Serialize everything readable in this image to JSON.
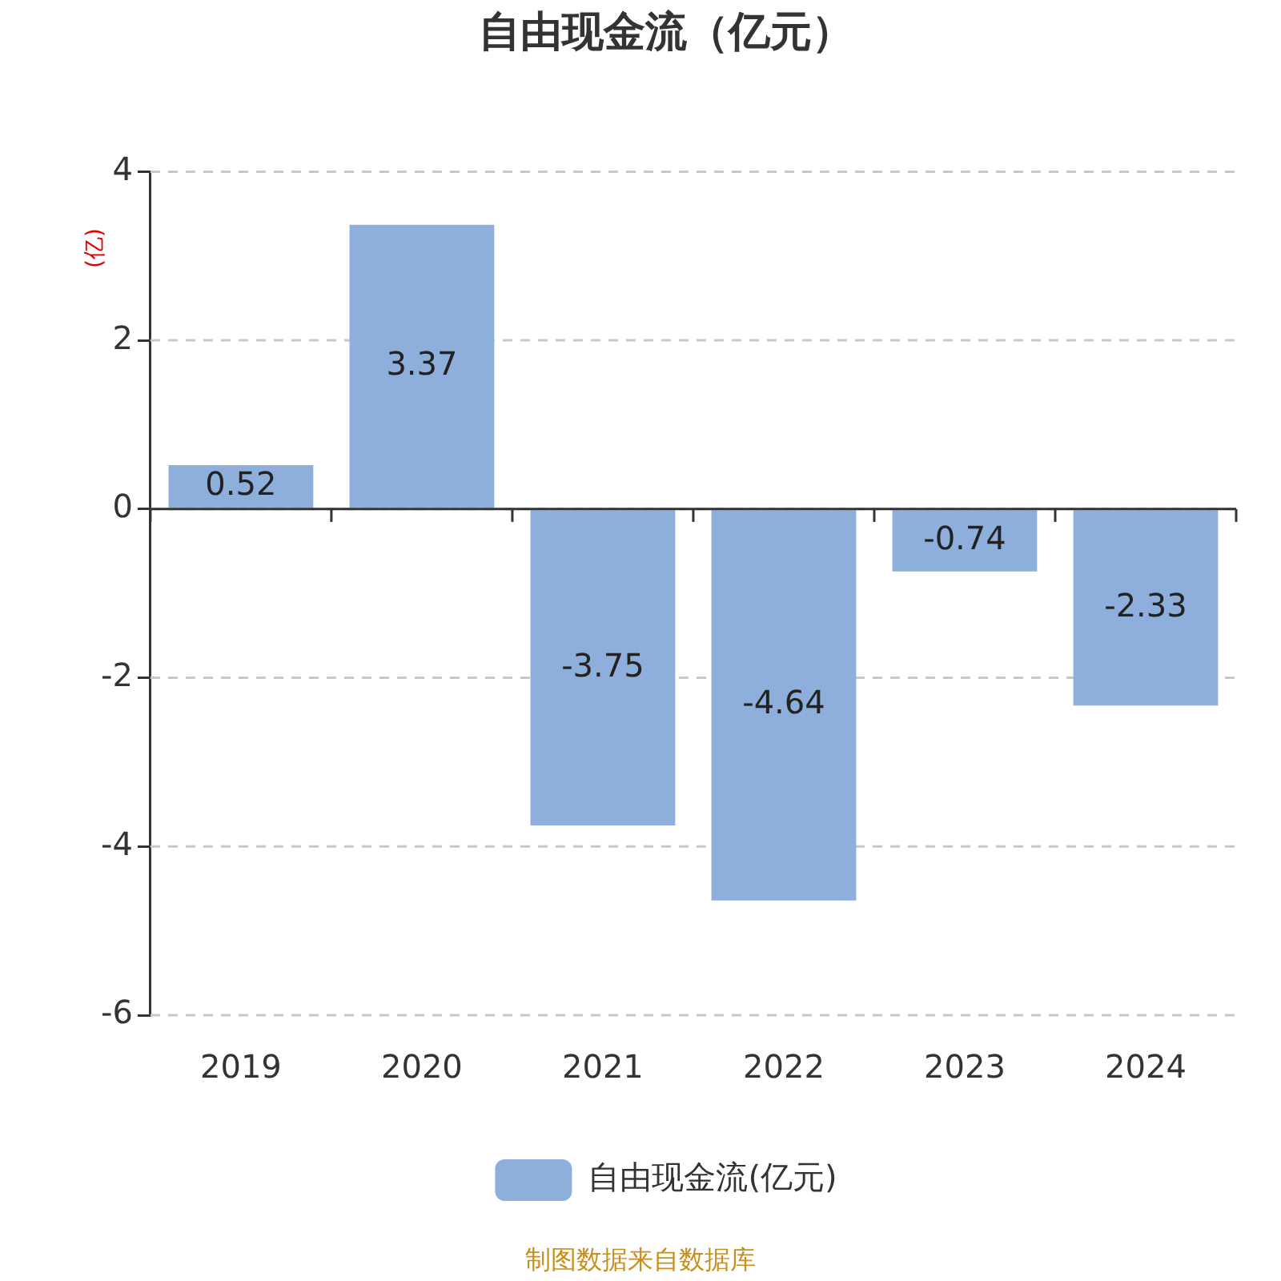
{
  "chart_data": {
    "type": "bar",
    "title": "自由现金流（亿元）",
    "ylabel": "(亿)",
    "categories": [
      "2019",
      "2020",
      "2021",
      "2022",
      "2023",
      "2024"
    ],
    "series": [
      {
        "name": "自由现金流(亿元)",
        "color": "#8eaedb",
        "values": [
          0.52,
          3.37,
          -3.75,
          -4.64,
          -0.74,
          -2.33
        ]
      }
    ],
    "ylim": [
      -6,
      4
    ],
    "yticks": [
      -6,
      -4,
      -2,
      0,
      2,
      4
    ],
    "grid": "y",
    "legend": "bottom",
    "data_labels": true,
    "annotations": [
      "制图数据来自数据库"
    ]
  }
}
